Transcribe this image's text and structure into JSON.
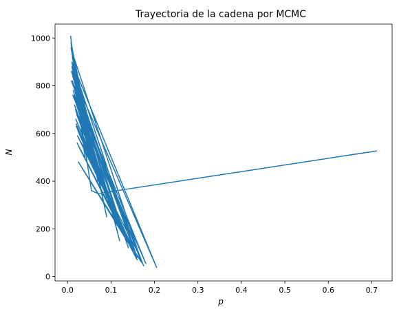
{
  "chart_data": {
    "type": "line",
    "title": "Trayectoria de la cadena por MCMC",
    "xlabel": "p",
    "ylabel": "N",
    "xlim": [
      -0.0288,
      0.7468
    ],
    "ylim": [
      -18.5,
      1058.5
    ],
    "xticks": [
      0.0,
      0.1,
      0.2,
      0.3,
      0.4,
      0.5,
      0.6,
      0.7
    ],
    "xtick_labels": [
      "0.0",
      "0.1",
      "0.2",
      "0.3",
      "0.4",
      "0.5",
      "0.6",
      "0.7"
    ],
    "yticks": [
      0,
      200,
      400,
      600,
      800,
      1000
    ],
    "ytick_labels": [
      "0",
      "200",
      "400",
      "600",
      "800",
      "1000"
    ],
    "grid": false,
    "series": [
      {
        "color": "#1f77b4",
        "x": [
          0.712,
          0.07,
          0.055,
          0.01,
          0.06,
          0.012,
          0.075,
          0.015,
          0.09,
          0.018,
          0.11,
          0.02,
          0.13,
          0.022,
          0.15,
          0.025,
          0.17,
          0.011,
          0.08,
          0.013,
          0.1,
          0.016,
          0.12,
          0.019,
          0.14,
          0.023,
          0.165,
          0.009,
          0.05,
          0.01,
          0.065,
          0.014,
          0.085,
          0.017,
          0.105,
          0.021,
          0.125,
          0.024,
          0.145,
          0.027,
          0.16,
          0.012,
          0.095,
          0.015,
          0.115,
          0.018,
          0.135,
          0.02,
          0.155,
          0.011,
          0.07,
          0.008,
          0.045,
          0.012,
          0.205,
          0.009,
          0.14,
          0.01,
          0.175,
          0.012,
          0.18,
          0.009,
          0.16,
          0.01,
          0.12,
          0.011,
          0.09,
          0.008,
          0.04,
          0.007
        ],
        "y": [
          527,
          348,
          360,
          900,
          480,
          850,
          420,
          760,
          330,
          700,
          250,
          640,
          170,
          560,
          110,
          480,
          60,
          820,
          380,
          780,
          290,
          720,
          210,
          660,
          150,
          590,
          90,
          950,
          520,
          880,
          430,
          800,
          360,
          740,
          270,
          680,
          190,
          610,
          130,
          540,
          70,
          840,
          310,
          760,
          230,
          700,
          160,
          630,
          100,
          860,
          400,
          960,
          600,
          890,
          38,
          860,
          120,
          820,
          45,
          760,
          55,
          820,
          80,
          900,
          150,
          920,
          250,
          980,
          500,
          1010
        ]
      }
    ]
  }
}
